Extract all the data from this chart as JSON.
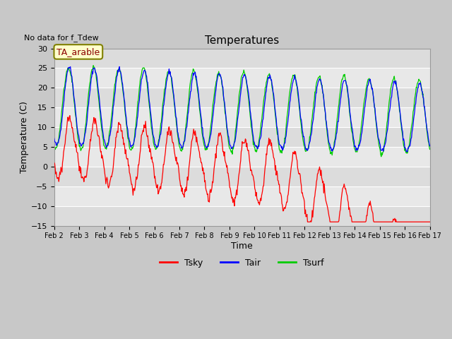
{
  "title": "Temperatures",
  "xlabel": "Time",
  "ylabel": "Temperature (C)",
  "ylim": [
    -15,
    30
  ],
  "yticks": [
    -15,
    -10,
    -5,
    0,
    5,
    10,
    15,
    20,
    25,
    30
  ],
  "note": "No data for f_Tdew",
  "label_box": "TA_arable",
  "colors": {
    "Tsky": "#FF0000",
    "Tair": "#0000FF",
    "Tsurf": "#00CC00"
  },
  "fig_bg": "#C8C8C8",
  "plot_bg": "#E8E8E8",
  "band_colors": [
    "#DCDCDC",
    "#E8E8E8"
  ],
  "grid_color": "#FFFFFF",
  "start_day": 2,
  "end_day": 17,
  "xtick_days": [
    2,
    3,
    4,
    5,
    6,
    7,
    8,
    9,
    10,
    11,
    12,
    13,
    14,
    15,
    16,
    17
  ]
}
